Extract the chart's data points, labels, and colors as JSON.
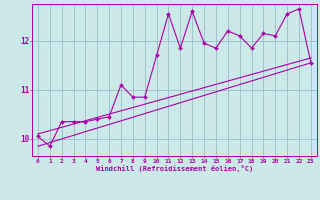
{
  "xlabel": "Windchill (Refroidissement éolien,°C)",
  "bg_color": "#cce8e8",
  "grid_color": "#99bbcc",
  "line_color": "#aa00aa",
  "xlim": [
    -0.5,
    23.5
  ],
  "ylim": [
    9.65,
    12.75
  ],
  "yticks": [
    10,
    11,
    12
  ],
  "xticks": [
    0,
    1,
    2,
    3,
    4,
    5,
    6,
    7,
    8,
    9,
    10,
    11,
    12,
    13,
    14,
    15,
    16,
    17,
    18,
    19,
    20,
    21,
    22,
    23
  ],
  "data_x": [
    0,
    1,
    2,
    3,
    4,
    5,
    6,
    7,
    8,
    9,
    10,
    11,
    12,
    13,
    14,
    15,
    16,
    17,
    18,
    19,
    20,
    21,
    22,
    23
  ],
  "data_y": [
    10.05,
    9.85,
    10.35,
    10.35,
    10.35,
    10.4,
    10.45,
    11.1,
    10.85,
    10.85,
    11.7,
    12.55,
    11.85,
    12.6,
    11.95,
    11.85,
    12.2,
    12.1,
    11.85,
    12.15,
    12.1,
    12.55,
    12.65,
    11.55
  ],
  "trend1_x": [
    0,
    23
  ],
  "trend1_y": [
    10.1,
    11.65
  ],
  "trend2_x": [
    0,
    23
  ],
  "trend2_y": [
    9.85,
    11.55
  ]
}
